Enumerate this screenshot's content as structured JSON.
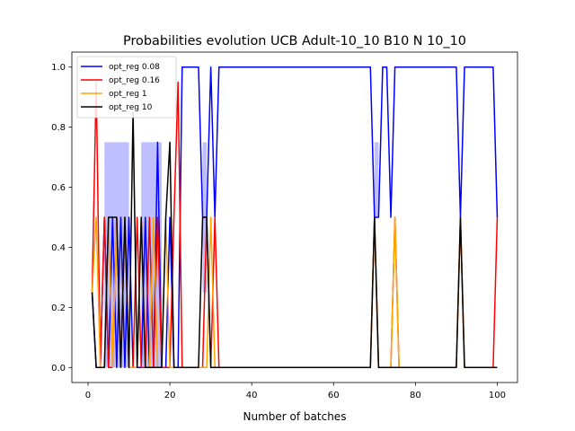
{
  "chart_data": {
    "type": "line",
    "title": "Probabilities evolution UCB Adult-10_10 B10 N 10_10",
    "xlabel": "Number of batches",
    "ylabel": "",
    "xlim": [
      -3.95,
      104.95
    ],
    "ylim": [
      -0.05,
      1.05
    ],
    "xticks": [
      0,
      20,
      40,
      60,
      80,
      100
    ],
    "yticks": [
      0.0,
      0.2,
      0.4,
      0.6,
      0.8,
      1.0
    ],
    "xtick_labels": [
      "0",
      "20",
      "40",
      "60",
      "80",
      "100"
    ],
    "ytick_labels": [
      "0.0",
      "0.2",
      "0.4",
      "0.6",
      "0.8",
      "1.0"
    ],
    "grid": false,
    "legend_position": "top-left",
    "series": [
      {
        "name": "opt_reg 0.08",
        "color": "#0000ff",
        "x": [
          1,
          2,
          3,
          4,
          5,
          6,
          7,
          8,
          9,
          10,
          11,
          12,
          13,
          14,
          15,
          16,
          17,
          18,
          19,
          20,
          21,
          22,
          23,
          24,
          25,
          26,
          27,
          28,
          29,
          30,
          31,
          32,
          33,
          68,
          69,
          70,
          71,
          72,
          73,
          74,
          75,
          76,
          90,
          91,
          92,
          99,
          100
        ],
        "y": [
          0.25,
          0,
          0,
          0.5,
          0,
          0.5,
          0,
          0.5,
          0,
          0.5,
          0,
          0,
          0,
          0.5,
          0,
          0,
          0.75,
          0,
          0,
          0.5,
          0,
          0,
          1,
          1,
          1,
          1,
          1,
          0.5,
          0.5,
          1,
          0.5,
          1,
          1,
          1,
          1,
          0.5,
          0.5,
          1,
          1,
          0.5,
          1,
          1,
          1,
          0.5,
          1,
          1,
          0.5
        ]
      },
      {
        "name": "opt_reg 0.16",
        "color": "#ff0000",
        "x": [
          1,
          2,
          3,
          4,
          5,
          6,
          7,
          8,
          9,
          10,
          11,
          12,
          13,
          14,
          15,
          16,
          17,
          18,
          19,
          20,
          21,
          22,
          23,
          28,
          29,
          30,
          31,
          32,
          33,
          68,
          69,
          70,
          71,
          72,
          73,
          74,
          75,
          76,
          90,
          91,
          92,
          99,
          100
        ],
        "y": [
          0.25,
          0.95,
          0,
          0.5,
          0,
          0,
          0.5,
          0,
          0.5,
          0,
          0,
          0.5,
          0,
          0,
          0.5,
          0,
          0.5,
          0,
          0,
          0,
          0.5,
          0.95,
          0,
          0,
          0.5,
          0,
          0.5,
          0,
          0,
          0,
          0,
          0.5,
          0,
          0,
          0,
          0,
          0.5,
          0,
          0,
          0.5,
          0,
          0,
          0.5
        ]
      },
      {
        "name": "opt_reg 1",
        "color": "#ffa500",
        "x": [
          1,
          2,
          3,
          4,
          5,
          6,
          7,
          8,
          9,
          10,
          11,
          12,
          13,
          14,
          15,
          16,
          17,
          18,
          19,
          20,
          21,
          22,
          23,
          28,
          29,
          30,
          31,
          68,
          69,
          70,
          71,
          72,
          74,
          75,
          76,
          90,
          91,
          92,
          100
        ],
        "y": [
          0.25,
          0.5,
          0,
          0,
          0.5,
          0,
          0.5,
          0,
          0.5,
          0,
          0,
          0,
          0.5,
          0,
          0,
          0.5,
          0,
          0,
          0.5,
          0,
          0,
          0,
          0,
          0,
          0,
          0.5,
          0,
          0,
          0,
          0.5,
          0,
          0,
          0,
          0.5,
          0,
          0,
          0.5,
          0,
          0
        ]
      },
      {
        "name": "opt_reg 10",
        "color": "#000000",
        "x": [
          1,
          2,
          3,
          4,
          5,
          6,
          7,
          8,
          9,
          10,
          11,
          12,
          13,
          14,
          15,
          16,
          17,
          18,
          19,
          20,
          21,
          22,
          23,
          27,
          28,
          29,
          30,
          31,
          68,
          69,
          70,
          71,
          72,
          89,
          90,
          91,
          92,
          100
        ],
        "y": [
          0.25,
          0,
          0,
          0,
          0.5,
          0.5,
          0.5,
          0,
          0.5,
          0,
          0.85,
          0,
          0.5,
          0,
          0,
          0,
          0,
          0,
          0.5,
          0.75,
          0,
          0,
          0,
          0,
          0.5,
          0.5,
          0,
          0,
          0,
          0,
          0.5,
          0,
          0,
          0,
          0,
          0.5,
          0,
          0
        ]
      }
    ],
    "bands": [
      {
        "color": "#0000ff",
        "x": [
          4,
          5,
          6,
          7,
          8,
          9,
          10
        ],
        "low": [
          0,
          0,
          0,
          0,
          0,
          0,
          0
        ],
        "high": [
          0.75,
          0.75,
          0.75,
          0.75,
          0.75,
          0.75,
          0.75
        ]
      },
      {
        "color": "#0000ff",
        "x": [
          13,
          14,
          15,
          16,
          17,
          18
        ],
        "low": [
          0,
          0,
          0,
          0,
          0,
          0
        ],
        "high": [
          0.75,
          0.75,
          0.75,
          0.75,
          0.75,
          0.75
        ]
      },
      {
        "color": "#0000ff",
        "x": [
          28,
          29
        ],
        "low": [
          0.25,
          0.25
        ],
        "high": [
          0.75,
          0.75
        ]
      },
      {
        "color": "#0000ff",
        "x": [
          70,
          71
        ],
        "low": [
          0.5,
          0.5
        ],
        "high": [
          0.75,
          0.75
        ]
      }
    ]
  }
}
